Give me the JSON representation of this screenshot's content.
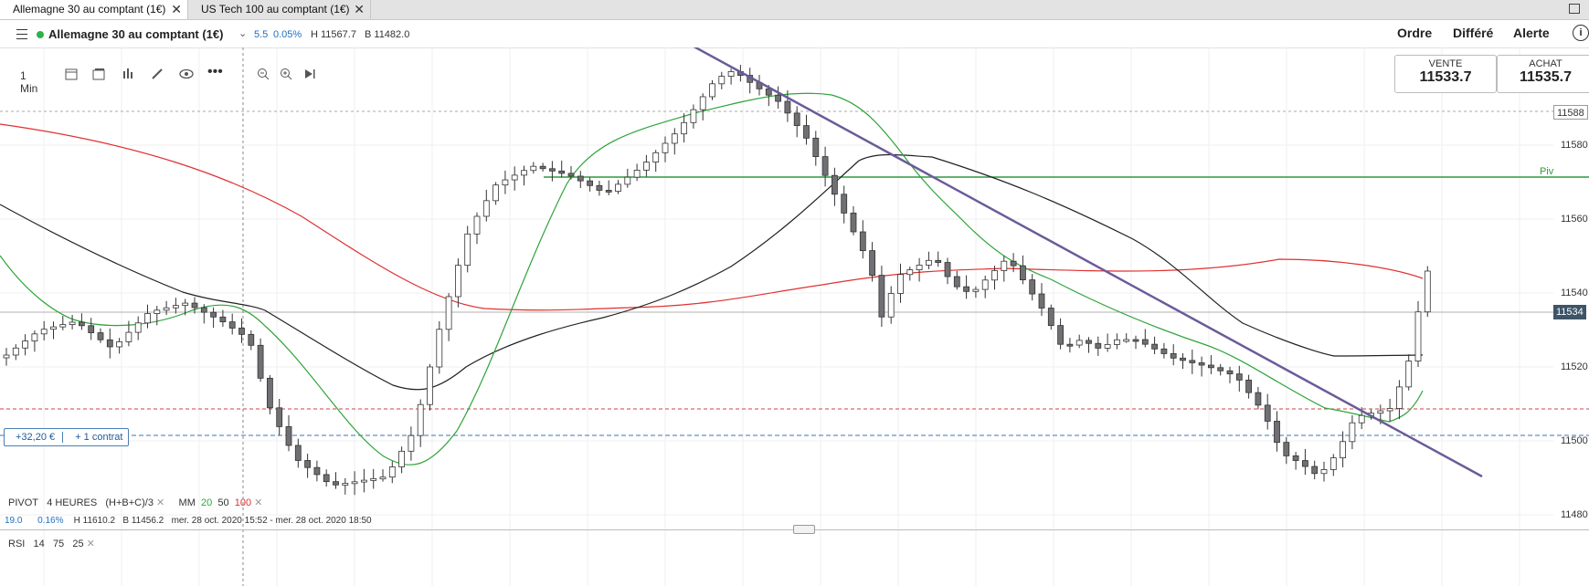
{
  "tabs": [
    {
      "label": "Allemagne 30 au comptant (1€)",
      "active": true
    },
    {
      "label": "US Tech 100 au comptant (1€)",
      "active": false
    }
  ],
  "header": {
    "instrument": "Allemagne 30 au comptant (1€)",
    "change": "5.5",
    "change_pct": "0.05%",
    "high": "H 11567.7",
    "low": "B 11482.0",
    "buttons": [
      "Ordre",
      "Différé",
      "Alerte"
    ]
  },
  "toolbar": {
    "interval": "1 Min"
  },
  "prices": {
    "sell_label": "VENTE",
    "sell_value": "11533.7",
    "buy_label": "ACHAT",
    "buy_value": "11535.7"
  },
  "price_axis": {
    "labels": [
      "11580",
      "11560",
      "11540",
      "11520",
      "11500",
      "11480"
    ],
    "current_tag": "11534",
    "top_tag": "11588",
    "pivot_label": "Piv"
  },
  "position": {
    "pnl": "+32,20 €",
    "size": "+ 1 contrat"
  },
  "indicators": {
    "pivot_label": "PIVOT",
    "pivot_period": "4 HEURES",
    "pivot_formula": "(H+B+C)/3",
    "ma_label": "MM",
    "ma_periods": [
      "20",
      "50",
      "100"
    ],
    "ma_colors": [
      "#2ea43a",
      "#222222",
      "#e03030"
    ]
  },
  "status_line": {
    "change": "19.0",
    "change_pct": "0.16%",
    "high": "H 11610.2",
    "low": "B 11456.2",
    "range": "mer. 28 oct. 2020 15:52 - mer. 28 oct. 2020 18:50"
  },
  "rsi": {
    "label": "RSI",
    "params": [
      "14",
      "75",
      "25"
    ]
  },
  "colors": {
    "accent_green": "#2db34a",
    "quote_blue": "#1f6fc1",
    "trendline": "#6b5b9a",
    "pivot_line": "#2e9a3e"
  }
}
